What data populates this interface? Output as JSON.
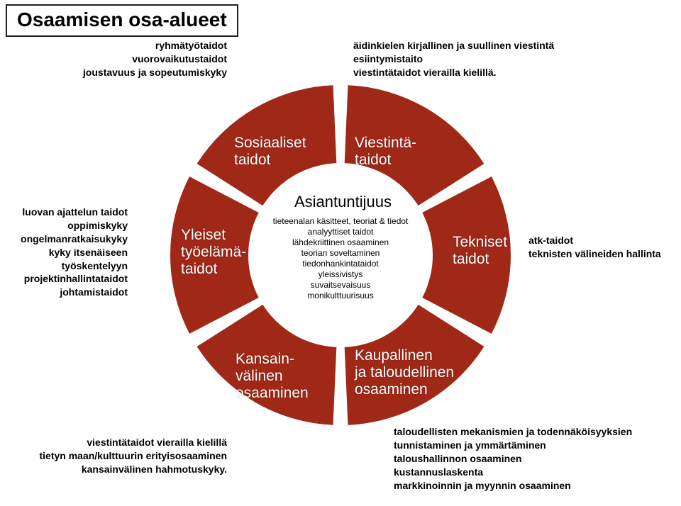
{
  "title": "Osaamisen osa-alueet",
  "diagram": {
    "type": "radial-segmented",
    "outer_radius": 240,
    "inner_radius": 130,
    "gap_deg": 5,
    "segment_color": "#a02817",
    "center_fill": "#ffffff",
    "background": "#ffffff",
    "label_fontsize": 21,
    "center_title_fontsize": 22,
    "center_text_fontsize": 12,
    "side_fontsize": 14
  },
  "segments": {
    "social": {
      "label_html": "Sosiaaliset<br>taidot"
    },
    "comm": {
      "label_html": "Viestintä-<br>taidot"
    },
    "tech": {
      "label_html": "Tekniset<br>taidot"
    },
    "commercial": {
      "label_html": "Kaupallinen<br>ja taloudellinen<br>osaaminen"
    },
    "international": {
      "label_html": "Kansain-<br>välinen<br>osaaminen"
    },
    "worklife": {
      "label_html": "Yleiset<br>työelämä-<br>taidot"
    }
  },
  "center": {
    "title": "Asiantuntijuus",
    "lines": [
      "tieteenalan käsitteet, teoriat & tiedot",
      "analyyttiset taidot",
      "lähdekriittinen osaaminen",
      "teorian soveltaminen",
      "tiedonhankintataidot",
      "yleissivistys",
      "suvaitsevaisuus",
      "monikulttuurisuus"
    ]
  },
  "outer": {
    "social": [
      "ryhmätyötaidot",
      "vuorovaikutustaidot",
      "joustavuus ja sopeutumiskyky"
    ],
    "comm": [
      "äidinkielen kirjallinen ja suullinen viestintä",
      "esiintymistaito",
      "viestintätaidot vierailla kielillä."
    ],
    "worklife": [
      "luovan ajattelun taidot",
      "oppimiskyky",
      "ongelmanratkaisukyky",
      "kyky itsenäiseen",
      "työskentelyyn",
      "projektinhallintataidot",
      "johtamistaidot"
    ],
    "tech": [
      "atk-taidot",
      "teknisten välineiden hallinta"
    ],
    "international": [
      "viestintätaidot vierailla kielillä",
      "tietyn maan/kulttuurin erityisosaaminen",
      "kansainvälinen hahmotuskyky."
    ],
    "commercial": [
      "taloudellisten mekanismien ja todennäköisyyksien",
      "tunnistaminen ja ymmärtäminen",
      "taloushallinnon osaaminen",
      "kustannuslaskenta",
      "markkinoinnin ja myynnin osaaminen"
    ]
  }
}
